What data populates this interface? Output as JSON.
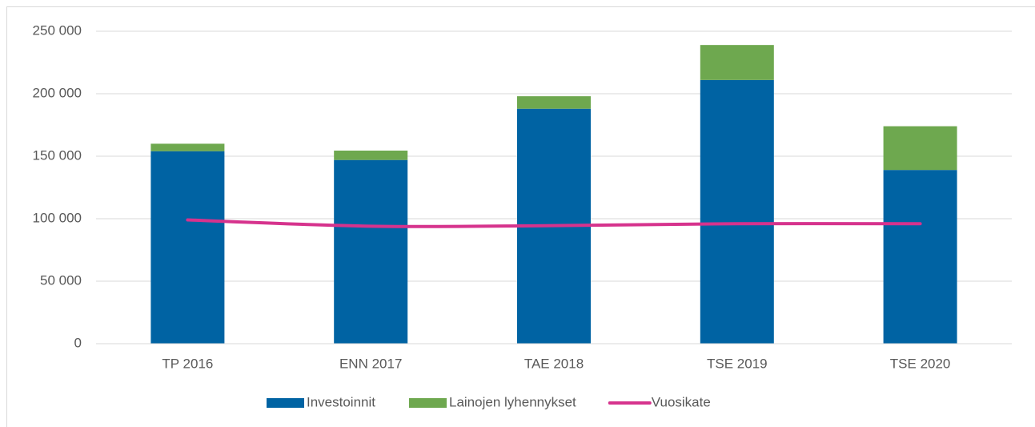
{
  "chart_data": {
    "type": "bar",
    "stacked": true,
    "categories": [
      "TP 2016",
      "ENN 2017",
      "TAE 2018",
      "TSE 2019",
      "TSE 2020"
    ],
    "series": [
      {
        "name": "Investoinnit",
        "color": "#0063a3",
        "values": [
          154000,
          147000,
          188000,
          211000,
          139000
        ]
      },
      {
        "name": "Lainojen lyhennykset",
        "color": "#6ea84f",
        "values": [
          6000,
          7500,
          10000,
          28000,
          35000
        ]
      },
      {
        "name": "Vuosikate",
        "color": "#d6338d",
        "type": "line",
        "values": [
          99000,
          94000,
          94500,
          96000,
          96000
        ]
      }
    ],
    "ylim": [
      0,
      250000
    ],
    "yticks": [
      0,
      {
        "value": 50000,
        "label": "50 000"
      },
      {
        "value": 100000,
        "label": "100 000"
      },
      {
        "value": 150000,
        "label": "150 000"
      },
      {
        "value": 200000,
        "label": "200 000"
      },
      {
        "value": 250000,
        "label": "250 000"
      }
    ],
    "grid": true,
    "legend": "bottom"
  }
}
